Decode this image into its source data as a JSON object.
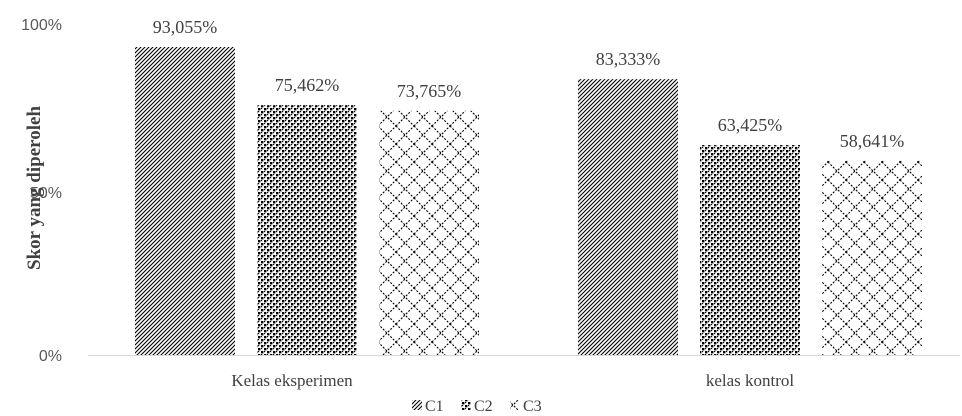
{
  "chart_data": {
    "type": "bar",
    "categories": [
      "Kelas eksperimen",
      "kelas kontrol"
    ],
    "series": [
      {
        "name": "C1",
        "values": [
          93.055,
          83.333
        ],
        "labels": [
          "93,055%",
          "83,333%"
        ],
        "pattern": "diagonal-fine"
      },
      {
        "name": "C2",
        "values": [
          75.462,
          63.425
        ],
        "labels": [
          "75,462%",
          "63,425%"
        ],
        "pattern": "checker-dots"
      },
      {
        "name": "C3",
        "values": [
          73.765,
          58.641
        ],
        "labels": [
          "73,765%",
          "58,641%"
        ],
        "pattern": "diamond-lattice"
      }
    ],
    "ylabel": "Skor yang diperoleh",
    "xlabel": "",
    "title": "",
    "ylim": [
      0,
      100
    ],
    "yticks": [
      "0%",
      "50%",
      "100%"
    ],
    "legend_position": "bottom",
    "grid": false,
    "colors": {
      "ink": "#000000",
      "axis": "#d9d9d9",
      "text": "#404040",
      "tick_text": "#595959"
    }
  }
}
